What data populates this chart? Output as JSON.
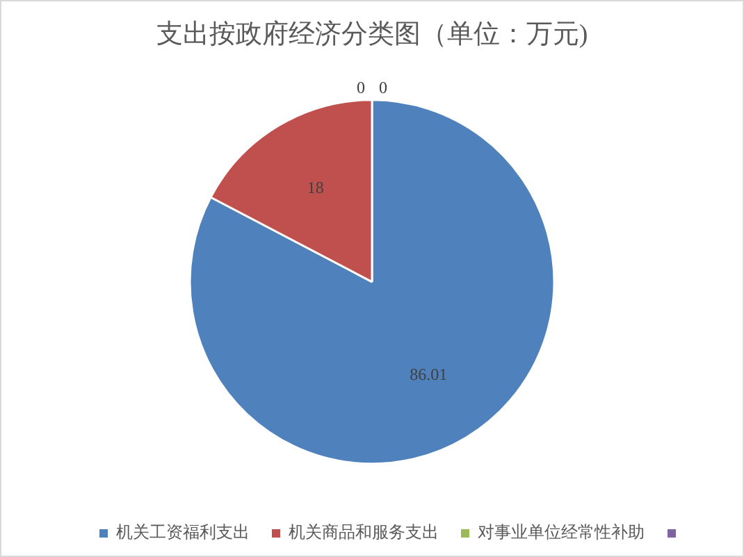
{
  "chart_data": {
    "type": "pie",
    "title": "支出按政府经济分类图（单位：万元)",
    "categories": [
      "机关工资福利支出",
      "机关商品和服务支出",
      "对事业单位经常性补助",
      null
    ],
    "values": [
      86.01,
      18,
      0,
      0
    ],
    "colors": [
      "#4f81bd",
      "#c0504d",
      "#9bbb59",
      "#8064a2"
    ],
    "value_labels": [
      "86.01",
      "18",
      "0",
      "0"
    ],
    "legend": "bottom"
  }
}
